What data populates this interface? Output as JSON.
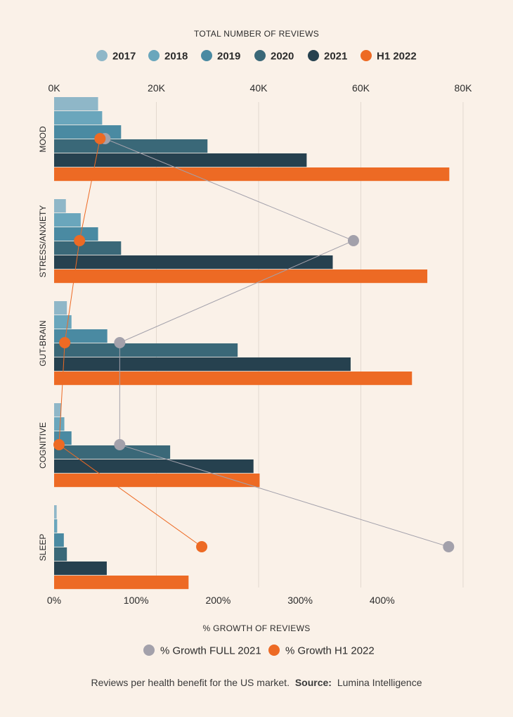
{
  "chart_data": {
    "type": "bar",
    "orientation": "horizontal",
    "top_axis_title": "TOTAL NUMBER OF REVIEWS",
    "bottom_axis_title": "% GROWTH OF REVIEWS",
    "top_ticks": [
      {
        "value": 0,
        "label": "0K"
      },
      {
        "value": 20000,
        "label": "20K"
      },
      {
        "value": 40000,
        "label": "40K"
      },
      {
        "value": 60000,
        "label": "60K"
      },
      {
        "value": 80000,
        "label": "80K"
      }
    ],
    "bottom_ticks": [
      {
        "value": 0,
        "label": "0%"
      },
      {
        "value": 100,
        "label": "100%"
      },
      {
        "value": 200,
        "label": "200%"
      },
      {
        "value": 300,
        "label": "300%"
      },
      {
        "value": 400,
        "label": "400%"
      }
    ],
    "categories": [
      "MOOD",
      "STRESS/ANXIETY",
      "GUT-BRAIN",
      "COGNITIVE",
      "SLEEP"
    ],
    "series": [
      {
        "name": "2017",
        "color": "#8fb7c8",
        "values": [
          8600,
          2300,
          2500,
          1400,
          500
        ]
      },
      {
        "name": "2018",
        "color": "#6aa6bc",
        "values": [
          9400,
          5200,
          3400,
          2000,
          600
        ]
      },
      {
        "name": "2019",
        "color": "#4a8aa2",
        "values": [
          13100,
          8600,
          10400,
          3400,
          1900
        ]
      },
      {
        "name": "2020",
        "color": "#3a6878",
        "values": [
          30000,
          13100,
          35900,
          22700,
          2500
        ]
      },
      {
        "name": "2021",
        "color": "#26414f",
        "values": [
          49400,
          54500,
          58000,
          39000,
          10300
        ]
      },
      {
        "name": "H1 2022",
        "color": "#ed6a24",
        "values": [
          77300,
          73000,
          70000,
          40200,
          26300
        ]
      }
    ],
    "growth_series": [
      {
        "name": "% Growth FULL 2021",
        "color": "#a3a1ab",
        "values": [
          62,
          365,
          80,
          80,
          481
        ]
      },
      {
        "name": "% Growth H1 2022",
        "color": "#ed6a24",
        "values": [
          56,
          31,
          13,
          6,
          180
        ]
      }
    ],
    "ylim_reviews": [
      0,
      80000
    ],
    "ylim_growth": [
      0,
      500
    ]
  },
  "caption": {
    "text": "Reviews per health benefit for the US market.",
    "source_label": "Source:",
    "source_value": "Lumina Intelligence"
  }
}
